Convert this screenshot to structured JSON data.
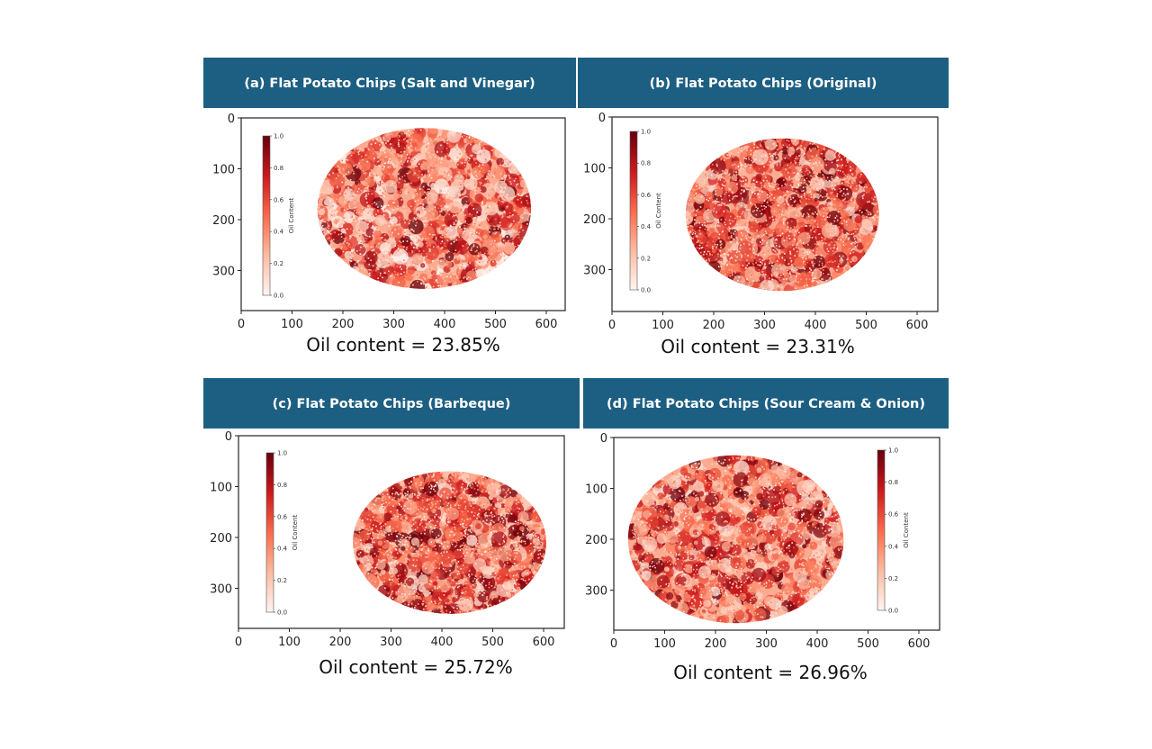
{
  "colors": {
    "header_bg": "#1d5f82",
    "header_text": "#ffffff",
    "colormap": "Reds"
  },
  "chart_data": [
    {
      "type": "heatmap",
      "title": "(a) Flat Potato Chips (Salt and Vinegar)",
      "caption": "Oil content = 23.85%",
      "xticks": [
        "0",
        "100",
        "200",
        "300",
        "400",
        "500",
        "600"
      ],
      "yticks": [
        "0",
        "100",
        "200",
        "300"
      ],
      "xlim": [
        0,
        640
      ],
      "ylim": [
        380,
        0
      ],
      "colorbar": {
        "label": "Oil Content",
        "range": [
          0.0,
          1.0
        ],
        "ticks": [
          "0.0",
          "0.2",
          "0.4",
          "0.6",
          "0.8",
          "1.0"
        ],
        "placement": "left"
      }
    },
    {
      "type": "heatmap",
      "title": "(b) Flat Potato Chips (Original)",
      "caption": "Oil content = 23.31%",
      "xticks": [
        "0",
        "100",
        "200",
        "300",
        "400",
        "500",
        "600"
      ],
      "yticks": [
        "0",
        "100",
        "200",
        "300"
      ],
      "xlim": [
        0,
        640
      ],
      "ylim": [
        380,
        0
      ],
      "colorbar": {
        "label": "Oil Content",
        "range": [
          0.0,
          1.0
        ],
        "ticks": [
          "0.0",
          "0.2",
          "0.4",
          "0.6",
          "0.8",
          "1.0"
        ],
        "placement": "left"
      }
    },
    {
      "type": "heatmap",
      "title": "(c) Flat Potato Chips (Barbeque)",
      "caption": "Oil content = 25.72%",
      "xticks": [
        "0",
        "100",
        "200",
        "300",
        "400",
        "500",
        "600"
      ],
      "yticks": [
        "0",
        "100",
        "200",
        "300"
      ],
      "xlim": [
        0,
        640
      ],
      "ylim": [
        380,
        0
      ],
      "colorbar": {
        "label": "Oil Content",
        "range": [
          0.0,
          1.0
        ],
        "ticks": [
          "0.0",
          "0.2",
          "0.4",
          "0.6",
          "0.8",
          "1.0"
        ],
        "placement": "left"
      }
    },
    {
      "type": "heatmap",
      "title": "(d) Flat Potato Chips (Sour Cream & Onion)",
      "caption": "Oil content = 26.96%",
      "xticks": [
        "0",
        "100",
        "200",
        "300",
        "400",
        "500",
        "600"
      ],
      "yticks": [
        "0",
        "100",
        "200",
        "300"
      ],
      "xlim": [
        0,
        640
      ],
      "ylim": [
        380,
        0
      ],
      "colorbar": {
        "label": "Oil Content",
        "range": [
          0.0,
          1.0
        ],
        "ticks": [
          "0.0",
          "0.2",
          "0.4",
          "0.6",
          "0.8",
          "1.0"
        ],
        "placement": "right"
      }
    }
  ]
}
